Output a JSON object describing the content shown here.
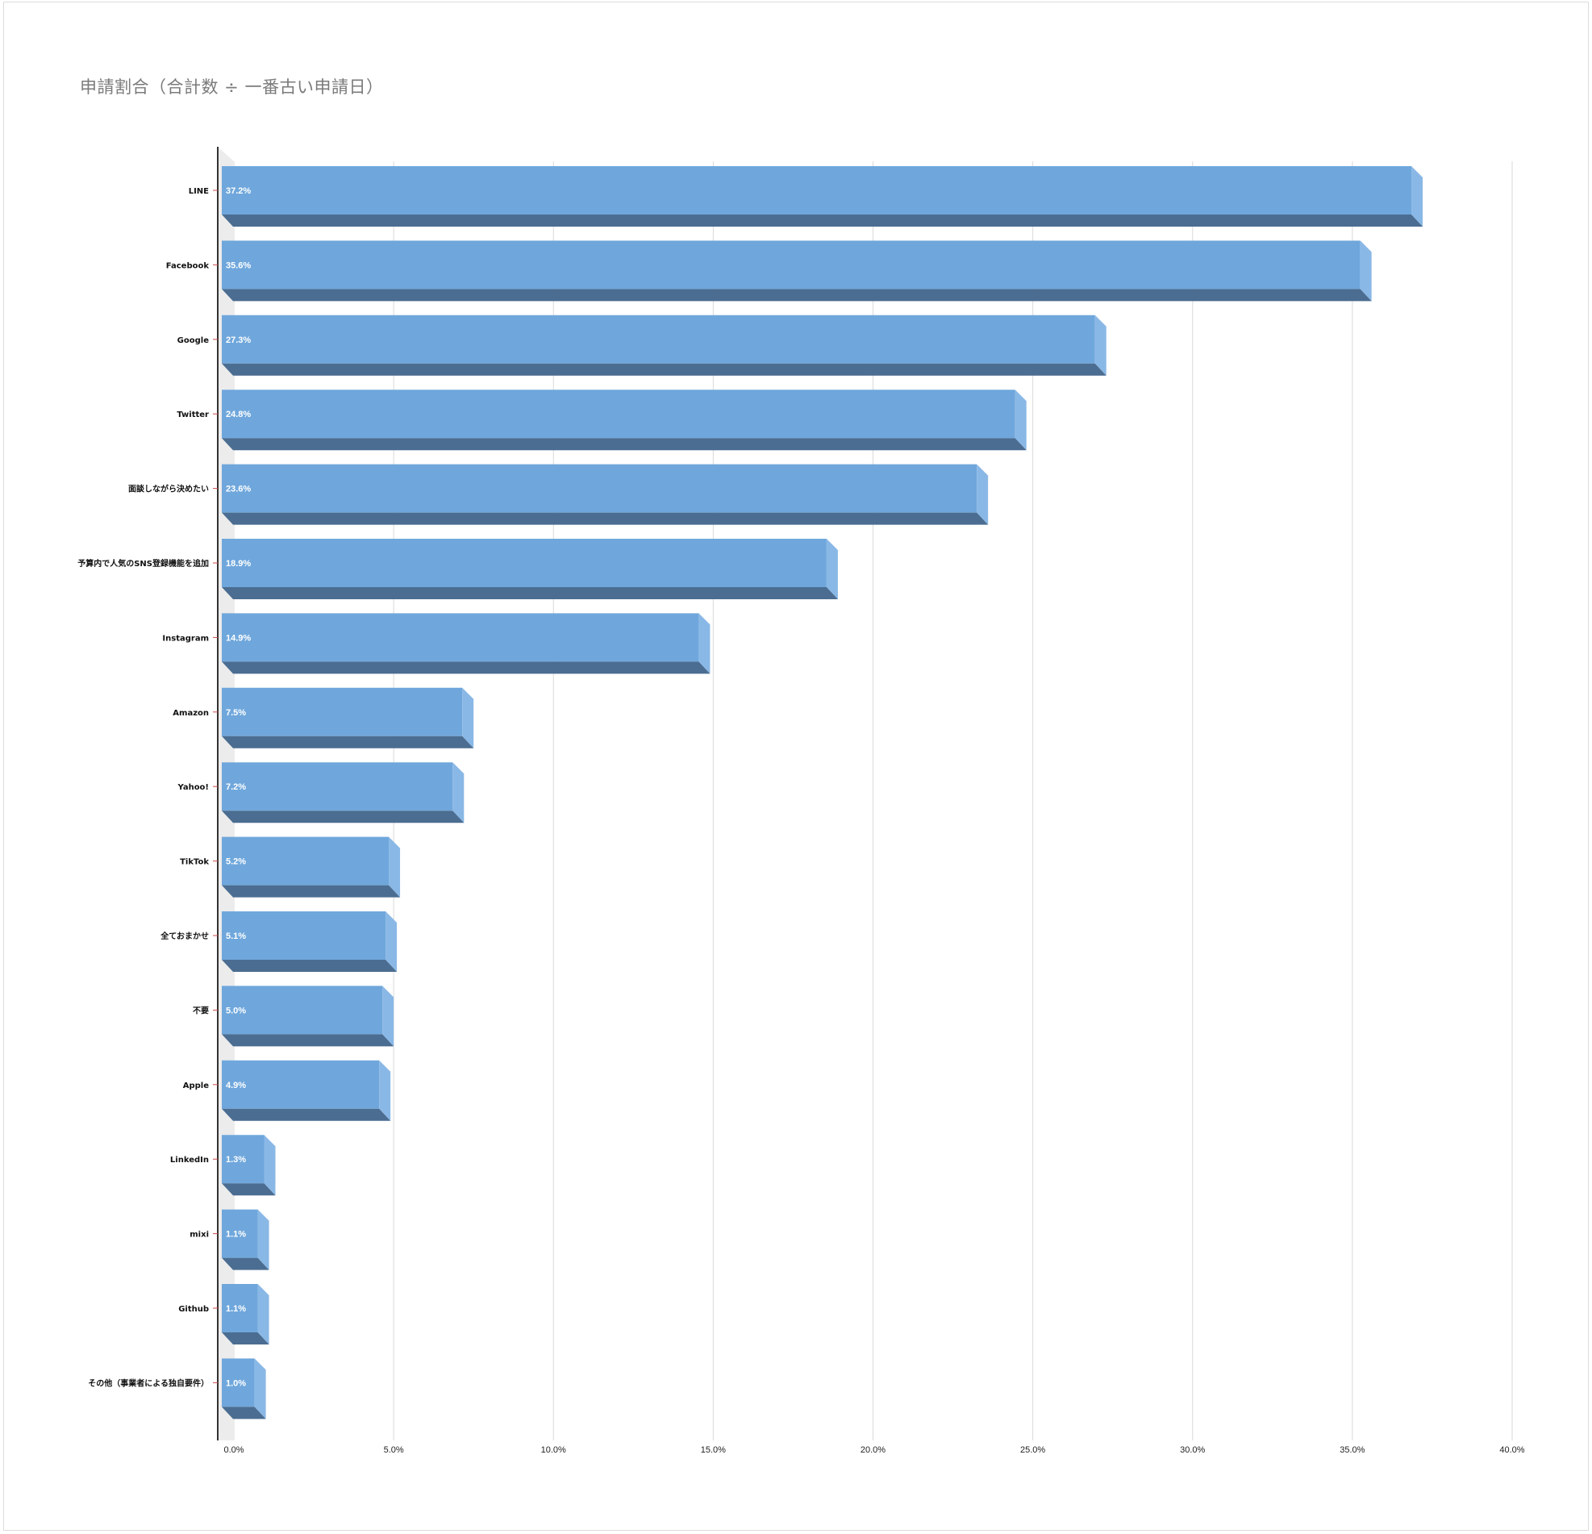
{
  "chart_data": {
    "type": "bar",
    "orientation": "horizontal",
    "title": "申請割合（合計数 ÷ 一番古い申請日）",
    "xlabel": "",
    "ylabel": "",
    "xlim": [
      0,
      40
    ],
    "x_ticks": [
      "0.0%",
      "5.0%",
      "10.0%",
      "15.0%",
      "20.0%",
      "25.0%",
      "30.0%",
      "35.0%",
      "40.0%"
    ],
    "grid": true,
    "legend": "none",
    "bar_color": "#6fa7dc",
    "bar_shadow_color": "#4b6d91",
    "categories": [
      "LINE",
      "Facebook",
      "Google",
      "Twitter",
      "面談しながら決めたい",
      "予算内で人気のSNS登録機能を追加",
      "Instagram",
      "Amazon",
      "Yahoo!",
      "TikTok",
      "全ておまかせ",
      "不要",
      "Apple",
      "LinkedIn",
      "mixi",
      "Github",
      "その他（事業者による独自要件）"
    ],
    "values": [
      37.2,
      35.6,
      27.3,
      24.8,
      23.6,
      18.9,
      14.9,
      7.5,
      7.2,
      5.2,
      5.1,
      5.0,
      4.9,
      1.3,
      1.1,
      1.1,
      1.0
    ],
    "data_labels": [
      "37.2%",
      "35.6%",
      "27.3%",
      "24.8%",
      "23.6%",
      "18.9%",
      "14.9%",
      "7.5%",
      "7.2%",
      "5.2%",
      "5.1%",
      "5.0%",
      "4.9%",
      "1.3%",
      "1.1%",
      "1.1%",
      "1.0%"
    ]
  }
}
